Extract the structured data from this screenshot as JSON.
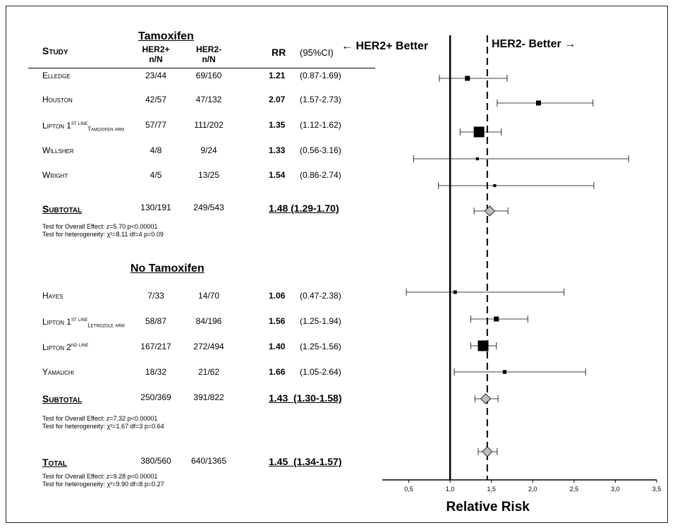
{
  "headers": {
    "study": "Study",
    "group_tam": "Tamoxifen",
    "col_her2pos": "HER2+",
    "col_her2neg": "HER2-",
    "col_nN": "n/N",
    "col_rr": "RR",
    "col_ci": "(95%CI)",
    "her2pos_better": "← HER2+ Better",
    "her2neg_better": "HER2- Better →"
  },
  "tamoxifen_rows": [
    {
      "name": "Elledge",
      "sup": "",
      "sub": "",
      "pos": "23/44",
      "neg": "69/160",
      "rr": "1.21",
      "ci": "(0.87-1.69)"
    },
    {
      "name": "Houston",
      "sup": "",
      "sub": "",
      "pos": "42/57",
      "neg": "47/132",
      "rr": "2.07",
      "ci": "(1.57-2.73)"
    },
    {
      "name": "Lipton 1",
      "sup": "st line",
      "sub": "Tamoxifen arm",
      "pos": "57/77",
      "neg": "111/202",
      "rr": "1.35",
      "ci": "(1.12-1.62)"
    },
    {
      "name": "Willsher",
      "sup": "",
      "sub": "",
      "pos": "4/8",
      "neg": "9/24",
      "rr": "1.33",
      "ci": "(0.56-3.16)"
    },
    {
      "name": "Wright",
      "sup": "",
      "sub": "",
      "pos": "4/5",
      "neg": "13/25",
      "rr": "1.54",
      "ci": "(0.86-2.74)"
    }
  ],
  "tam_subtotal": {
    "label": "Subtotal",
    "pos": "130/191",
    "neg": "249/543",
    "rr_ci": "1.48 (1.29-1.70)"
  },
  "tam_tests": {
    "overall": "Test for Overall Effect:  z=5.70  p<0.00001",
    "heterogeneity": "Test for heterogeneity:  χ²=8.11  df=4  p=0.09"
  },
  "group_notam": "No Tamoxifen",
  "notam_rows": [
    {
      "name": "Hayes",
      "sup": "",
      "sub": "",
      "pos": "7/33",
      "neg": "14/70",
      "rr": "1.06",
      "ci": "(0.47-2.38)"
    },
    {
      "name": "Lipton 1",
      "sup": "st line",
      "sub": "Letrozole arm",
      "pos": "58/87",
      "neg": "84/196",
      "rr": "1.56",
      "ci": "(1.25-1.94)"
    },
    {
      "name": "Lipton 2",
      "sup": "nd line",
      "sub": "",
      "pos": "167/217",
      "neg": "272/494",
      "rr": "1.40",
      "ci": "(1.25-1.56)"
    },
    {
      "name": "Yamauchi",
      "sup": "",
      "sub": "",
      "pos": "18/32",
      "neg": "21/62",
      "rr": "1.66",
      "ci": "(1.05-2.64)"
    }
  ],
  "notam_subtotal": {
    "label": "Subtotal",
    "pos": "250/369",
    "neg": "391/822",
    "rr_ci": "1.43  (1.30-1.58)"
  },
  "notam_tests": {
    "overall": "Test for Overall Effect:  z=7.32  p<0.00001",
    "heterogeneity": "Test for heterogeneity:  χ²=1.67  df=3  p=0.64"
  },
  "total": {
    "label": "Total",
    "pos": "380/560",
    "neg": "640/1365",
    "rr_ci": "1.45  (1.34-1.57)"
  },
  "total_tests": {
    "overall": "Test for Overall Effect:  z=9.28  p<0.00001",
    "heterogeneity": "Test for heterogeneity:  χ²=9.90  df=8  p=0.27"
  },
  "chart_data": {
    "type": "forest",
    "xlabel": "Relative Risk",
    "xlim": [
      0.0,
      3.5
    ],
    "x_ticks": [
      "0,5",
      "1,0",
      "1,5",
      "2,0",
      "2,5",
      "3,0",
      "3,5"
    ],
    "x_tick_values": [
      0.5,
      1.0,
      1.5,
      2.0,
      2.5,
      3.0,
      3.5
    ],
    "reference_line": 1.0,
    "pooled_line": 1.45,
    "studies": [
      {
        "name": "Elledge",
        "rr": 1.21,
        "lo": 0.87,
        "hi": 1.69,
        "weight": 1
      },
      {
        "name": "Houston",
        "rr": 2.07,
        "lo": 1.57,
        "hi": 2.73,
        "weight": 1
      },
      {
        "name": "Lipton 1st line Tamoxifen arm",
        "rr": 1.35,
        "lo": 1.12,
        "hi": 1.62,
        "weight": 3
      },
      {
        "name": "Willsher",
        "rr": 1.33,
        "lo": 0.56,
        "hi": 3.16,
        "weight": 0.3
      },
      {
        "name": "Wright",
        "rr": 1.54,
        "lo": 0.86,
        "hi": 2.74,
        "weight": 0.3
      },
      {
        "name": "Subtotal (Tamoxifen)",
        "rr": 1.48,
        "lo": 1.29,
        "hi": 1.7,
        "diamond": true
      },
      {
        "name": "Hayes",
        "rr": 1.06,
        "lo": 0.47,
        "hi": 2.38,
        "weight": 0.5
      },
      {
        "name": "Lipton 1st line Letrozole arm",
        "rr": 1.56,
        "lo": 1.25,
        "hi": 1.94,
        "weight": 1
      },
      {
        "name": "Lipton 2nd line",
        "rr": 1.4,
        "lo": 1.25,
        "hi": 1.56,
        "weight": 3
      },
      {
        "name": "Yamauchi",
        "rr": 1.66,
        "lo": 1.05,
        "hi": 2.64,
        "weight": 0.6
      },
      {
        "name": "Subtotal (No Tamoxifen)",
        "rr": 1.43,
        "lo": 1.3,
        "hi": 1.58,
        "diamond": true
      },
      {
        "name": "Total",
        "rr": 1.45,
        "lo": 1.34,
        "hi": 1.57,
        "diamond": true
      }
    ],
    "colors": {
      "marker": "#000000",
      "diamond": "#bdbdbd"
    }
  }
}
